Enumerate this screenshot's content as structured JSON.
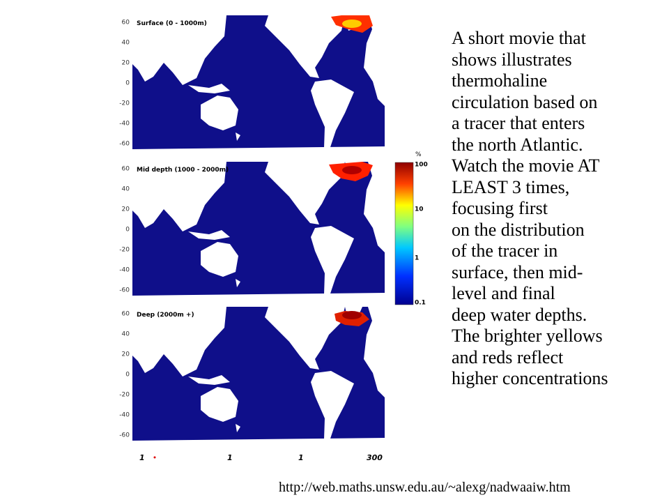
{
  "panels": [
    {
      "title": "Surface (0 - 1000m)",
      "yticks": [
        "60",
        "40",
        "20",
        "0",
        "-20",
        "-40",
        "-60"
      ]
    },
    {
      "title": "Mid depth (1000 - 2000m)",
      "yticks": [
        "60",
        "40",
        "20",
        "0",
        "-20",
        "-40",
        "-60"
      ]
    },
    {
      "title": "Deep (2000m +)",
      "yticks": [
        "60",
        "40",
        "20",
        "0",
        "-20",
        "-40",
        "-60"
      ]
    }
  ],
  "colorbar": {
    "unit": "%",
    "labels": [
      "100",
      "10",
      "1",
      "0.1"
    ]
  },
  "timeline": [
    "1",
    "1",
    "1",
    "300"
  ],
  "description": [
    "A short movie that",
    "shows illustrates",
    "thermohaline",
    "circulation based on",
    "a tracer that enters",
    "the north Atlantic.",
    "Watch the movie AT",
    "LEAST 3 times,",
    "focusing first",
    "on the distribution",
    "of the tracer in",
    "surface, then mid-",
    "level and final",
    "deep water depths.",
    "The brighter yellows",
    "and reds reflect",
    "higher concentrations"
  ],
  "source": "http://web.maths.unsw.edu.au/~alexg/nadwaaiw.htm"
}
